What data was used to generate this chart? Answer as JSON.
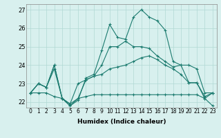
{
  "xlabel": "Humidex (Indice chaleur)",
  "x": [
    0,
    1,
    2,
    3,
    4,
    5,
    6,
    7,
    8,
    9,
    10,
    11,
    12,
    13,
    14,
    15,
    16,
    17,
    18,
    19,
    20,
    21,
    22,
    23
  ],
  "series": [
    [
      22.5,
      23.0,
      22.8,
      24.0,
      22.2,
      21.8,
      22.1,
      23.3,
      23.5,
      24.8,
      26.2,
      25.5,
      25.4,
      26.6,
      27.0,
      26.6,
      26.4,
      25.9,
      24.2,
      24.0,
      23.05,
      23.05,
      22.2,
      21.8
    ],
    [
      22.5,
      23.0,
      22.8,
      24.0,
      22.2,
      21.8,
      22.2,
      23.2,
      23.4,
      24.0,
      25.0,
      25.0,
      25.3,
      25.0,
      25.0,
      24.9,
      24.5,
      24.2,
      23.9,
      24.0,
      24.0,
      23.8,
      22.5,
      22.5
    ],
    [
      22.5,
      23.0,
      22.8,
      23.8,
      22.2,
      21.9,
      23.0,
      23.2,
      23.4,
      23.5,
      23.8,
      23.9,
      24.0,
      24.2,
      24.4,
      24.5,
      24.3,
      24.0,
      23.8,
      23.5,
      23.05,
      23.05,
      22.3,
      22.5
    ],
    [
      22.5,
      22.5,
      22.5,
      22.3,
      22.2,
      21.9,
      22.2,
      22.3,
      22.4,
      22.4,
      22.4,
      22.4,
      22.4,
      22.4,
      22.4,
      22.4,
      22.4,
      22.4,
      22.4,
      22.4,
      22.4,
      22.4,
      22.2,
      22.5
    ]
  ],
  "line_color": "#1a7a6e",
  "marker": "+",
  "marker_size": 3,
  "marker_edge_width": 0.8,
  "linewidth": 0.8,
  "background_color": "#d8f0ee",
  "grid_color": "#b0d8d4",
  "ylim": [
    21.7,
    27.3
  ],
  "yticks": [
    22,
    23,
    24,
    25,
    26,
    27
  ],
  "xticks": [
    0,
    1,
    2,
    3,
    4,
    5,
    6,
    7,
    8,
    9,
    10,
    11,
    12,
    13,
    14,
    15,
    16,
    17,
    18,
    19,
    20,
    21,
    22,
    23
  ],
  "xlabel_fontsize": 6.5,
  "tick_fontsize": 5.5,
  "ytick_fontsize": 6.0
}
